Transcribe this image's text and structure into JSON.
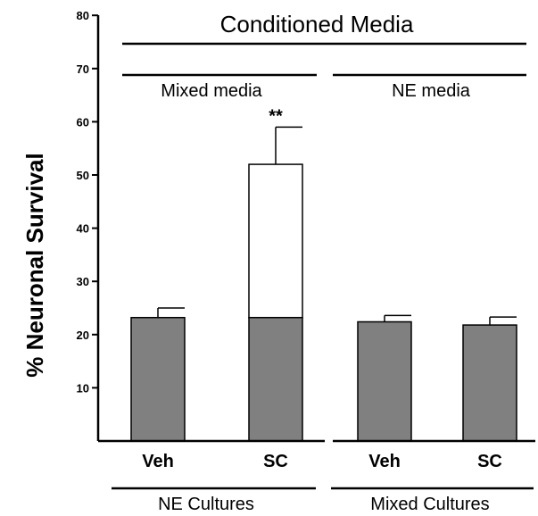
{
  "chart_data": {
    "type": "bar",
    "ylabel": "% Neuronal Survival",
    "ylim": [
      0,
      80
    ],
    "yticks": [
      10,
      20,
      30,
      40,
      50,
      60,
      70,
      80
    ],
    "header": "Conditioned Media",
    "media_groups": [
      "Mixed media",
      "NE media"
    ],
    "culture_groups": [
      "NE Cultures",
      "Mixed Cultures"
    ],
    "categories": [
      "Veh",
      "SC",
      "Veh",
      "SC"
    ],
    "series": [
      {
        "values": [
          23.2,
          52.0,
          22.4,
          21.8
        ],
        "errors": [
          1.8,
          7.0,
          1.2,
          1.5
        ]
      }
    ],
    "baseline_portion": [
      23.2,
      23.2,
      22.4,
      21.8
    ],
    "annotations": [
      {
        "bar_index": 1,
        "text": "**"
      }
    ],
    "colors": {
      "bar_fill": "#808080",
      "increase_fill": "#ffffff",
      "line": "#000000"
    }
  }
}
